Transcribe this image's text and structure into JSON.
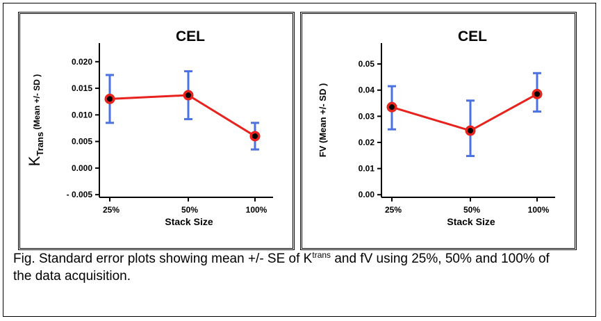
{
  "chart_data": [
    {
      "type": "line",
      "title": "CEL",
      "xlabel": "Stack Size",
      "ylabel_main": "K",
      "ylabel_sub": "Trans",
      "ylabel_rest": " (Mean +/- SD )",
      "categories": [
        "25%",
        "50%",
        "100%"
      ],
      "series": [
        {
          "values": [
            0.013,
            0.0137,
            0.006
          ],
          "error_low": [
            0.0085,
            0.0092,
            0.0035
          ],
          "error_high": [
            0.0175,
            0.0182,
            0.0085
          ]
        }
      ],
      "ylim": [
        -0.0055,
        0.0235
      ],
      "yticks": [
        -0.005,
        0.0,
        0.005,
        0.01,
        0.015,
        0.02
      ],
      "ytick_labels": [
        "- 0.005",
        "0.000",
        "0.005",
        "0.010",
        "0.015",
        "0.020"
      ],
      "line_color": "#e8221d",
      "errorbar_color": "#4b72e0",
      "marker_color": "#000000"
    },
    {
      "type": "line",
      "title": "CEL",
      "xlabel": "Stack Size",
      "ylabel_main": "FV (Mean +/- SD )",
      "ylabel_sub": "",
      "ylabel_rest": "",
      "categories": [
        "25%",
        "50%",
        "100%"
      ],
      "series": [
        {
          "values": [
            0.0335,
            0.0245,
            0.0385
          ],
          "error_low": [
            0.025,
            0.0148,
            0.0318
          ],
          "error_high": [
            0.0415,
            0.036,
            0.0465
          ]
        }
      ],
      "ylim": [
        -0.001,
        0.058
      ],
      "yticks": [
        0.0,
        0.01,
        0.02,
        0.03,
        0.04,
        0.05
      ],
      "ytick_labels": [
        "0.00",
        "0.01",
        "0.02",
        "0.03",
        "0.04",
        "0.05"
      ],
      "line_color": "#e8221d",
      "errorbar_color": "#4b72e0",
      "marker_color": "#000000"
    }
  ],
  "caption": {
    "prefix": "Fig. Standard error plots showing mean +/- SE of K",
    "superscript": "trans",
    "suffix": " and fV using 25%, 50% and 100% of the data acquisition."
  }
}
